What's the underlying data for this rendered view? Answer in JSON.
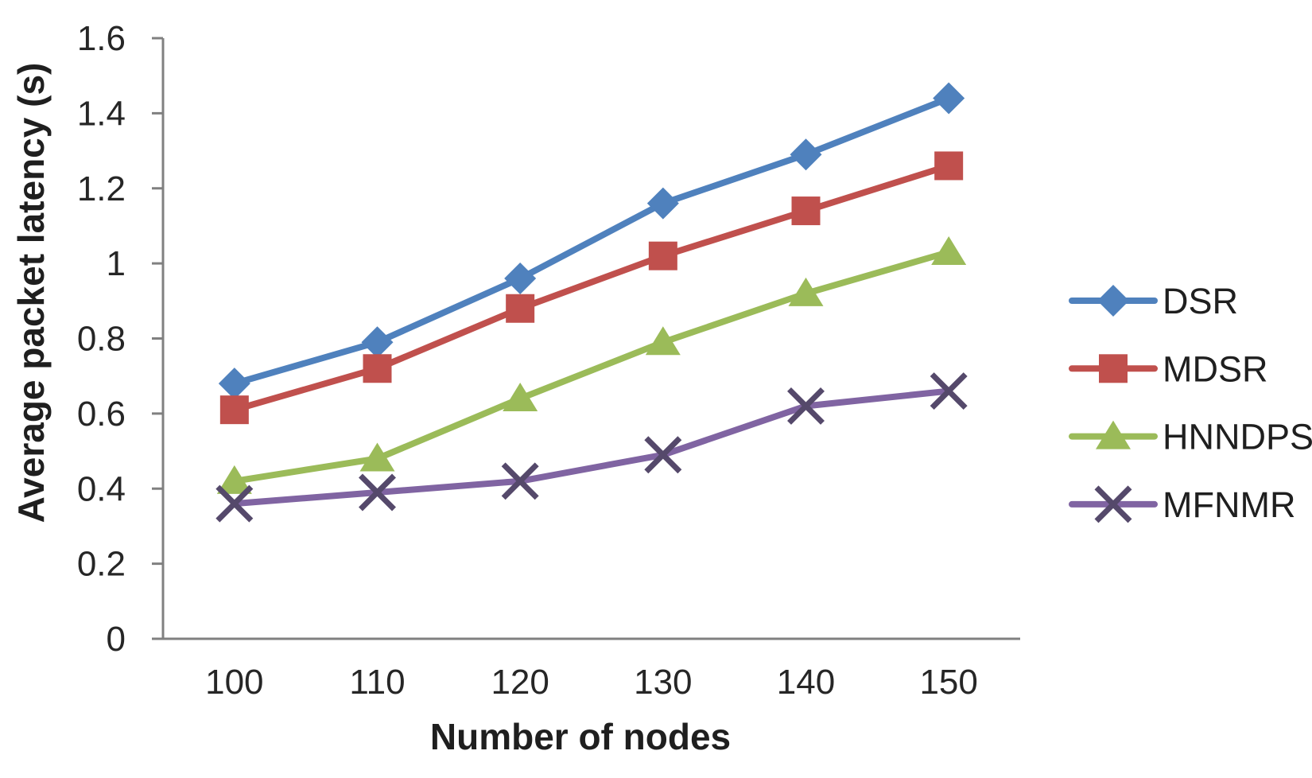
{
  "chart_data": {
    "type": "line",
    "title": "",
    "xlabel": "Number of nodes",
    "ylabel": "Average packet latency (s)",
    "categories": [
      "100",
      "110",
      "120",
      "130",
      "140",
      "150"
    ],
    "x_values": [
      100,
      110,
      120,
      130,
      140,
      150
    ],
    "ylim": [
      0,
      1.6
    ],
    "y_tick_values": [
      0,
      0.2,
      0.4,
      0.6,
      0.8,
      1.0,
      1.2,
      1.4,
      1.6
    ],
    "y_tick_labels": [
      "0",
      "0.2",
      "0.4",
      "0.6",
      "0.8",
      "1",
      "1.2",
      "1.4",
      "1.6"
    ],
    "grid": false,
    "legend_position": "right",
    "series": [
      {
        "name": "DSR",
        "marker": "diamond",
        "color": "#4F81BD",
        "marker_color": "#4F81BD",
        "values": [
          0.68,
          0.79,
          0.96,
          1.16,
          1.29,
          1.44
        ]
      },
      {
        "name": "MDSR",
        "marker": "square",
        "color": "#C0504D",
        "marker_color": "#C0504D",
        "values": [
          0.61,
          0.72,
          0.88,
          1.02,
          1.14,
          1.26
        ]
      },
      {
        "name": "HNNDPS",
        "marker": "triangle",
        "color": "#9BBB59",
        "marker_color": "#9BBB59",
        "values": [
          0.42,
          0.48,
          0.64,
          0.79,
          0.92,
          1.03
        ]
      },
      {
        "name": "MFNMR",
        "marker": "x",
        "color": "#8064A2",
        "marker_color": "#55496B",
        "values": [
          0.36,
          0.39,
          0.42,
          0.49,
          0.62,
          0.66
        ]
      }
    ],
    "axis_color": "#808080",
    "text_color": "#262626"
  }
}
